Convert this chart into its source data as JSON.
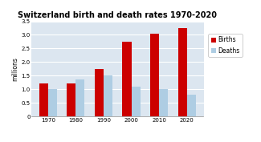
{
  "title": "Switzerland birth and death rates 1970-2020",
  "categories": [
    "1970",
    "1980",
    "1990",
    "2000",
    "2010",
    "2020"
  ],
  "births": [
    1.2,
    1.2,
    1.75,
    2.75,
    3.05,
    3.25
  ],
  "deaths": [
    1.0,
    1.35,
    1.5,
    1.1,
    1.0,
    0.8
  ],
  "birth_color": "#cc0000",
  "death_color": "#aecde3",
  "ylabel": "millions",
  "ylim": [
    0,
    3.5
  ],
  "yticks": [
    0,
    0.5,
    1.0,
    1.5,
    2.0,
    2.5,
    3.0,
    3.5
  ],
  "legend_labels": [
    "Births",
    "Deaths"
  ],
  "bar_width": 0.32,
  "plot_bg_color": "#dce6f0",
  "fig_bg_color": "#ffffff"
}
